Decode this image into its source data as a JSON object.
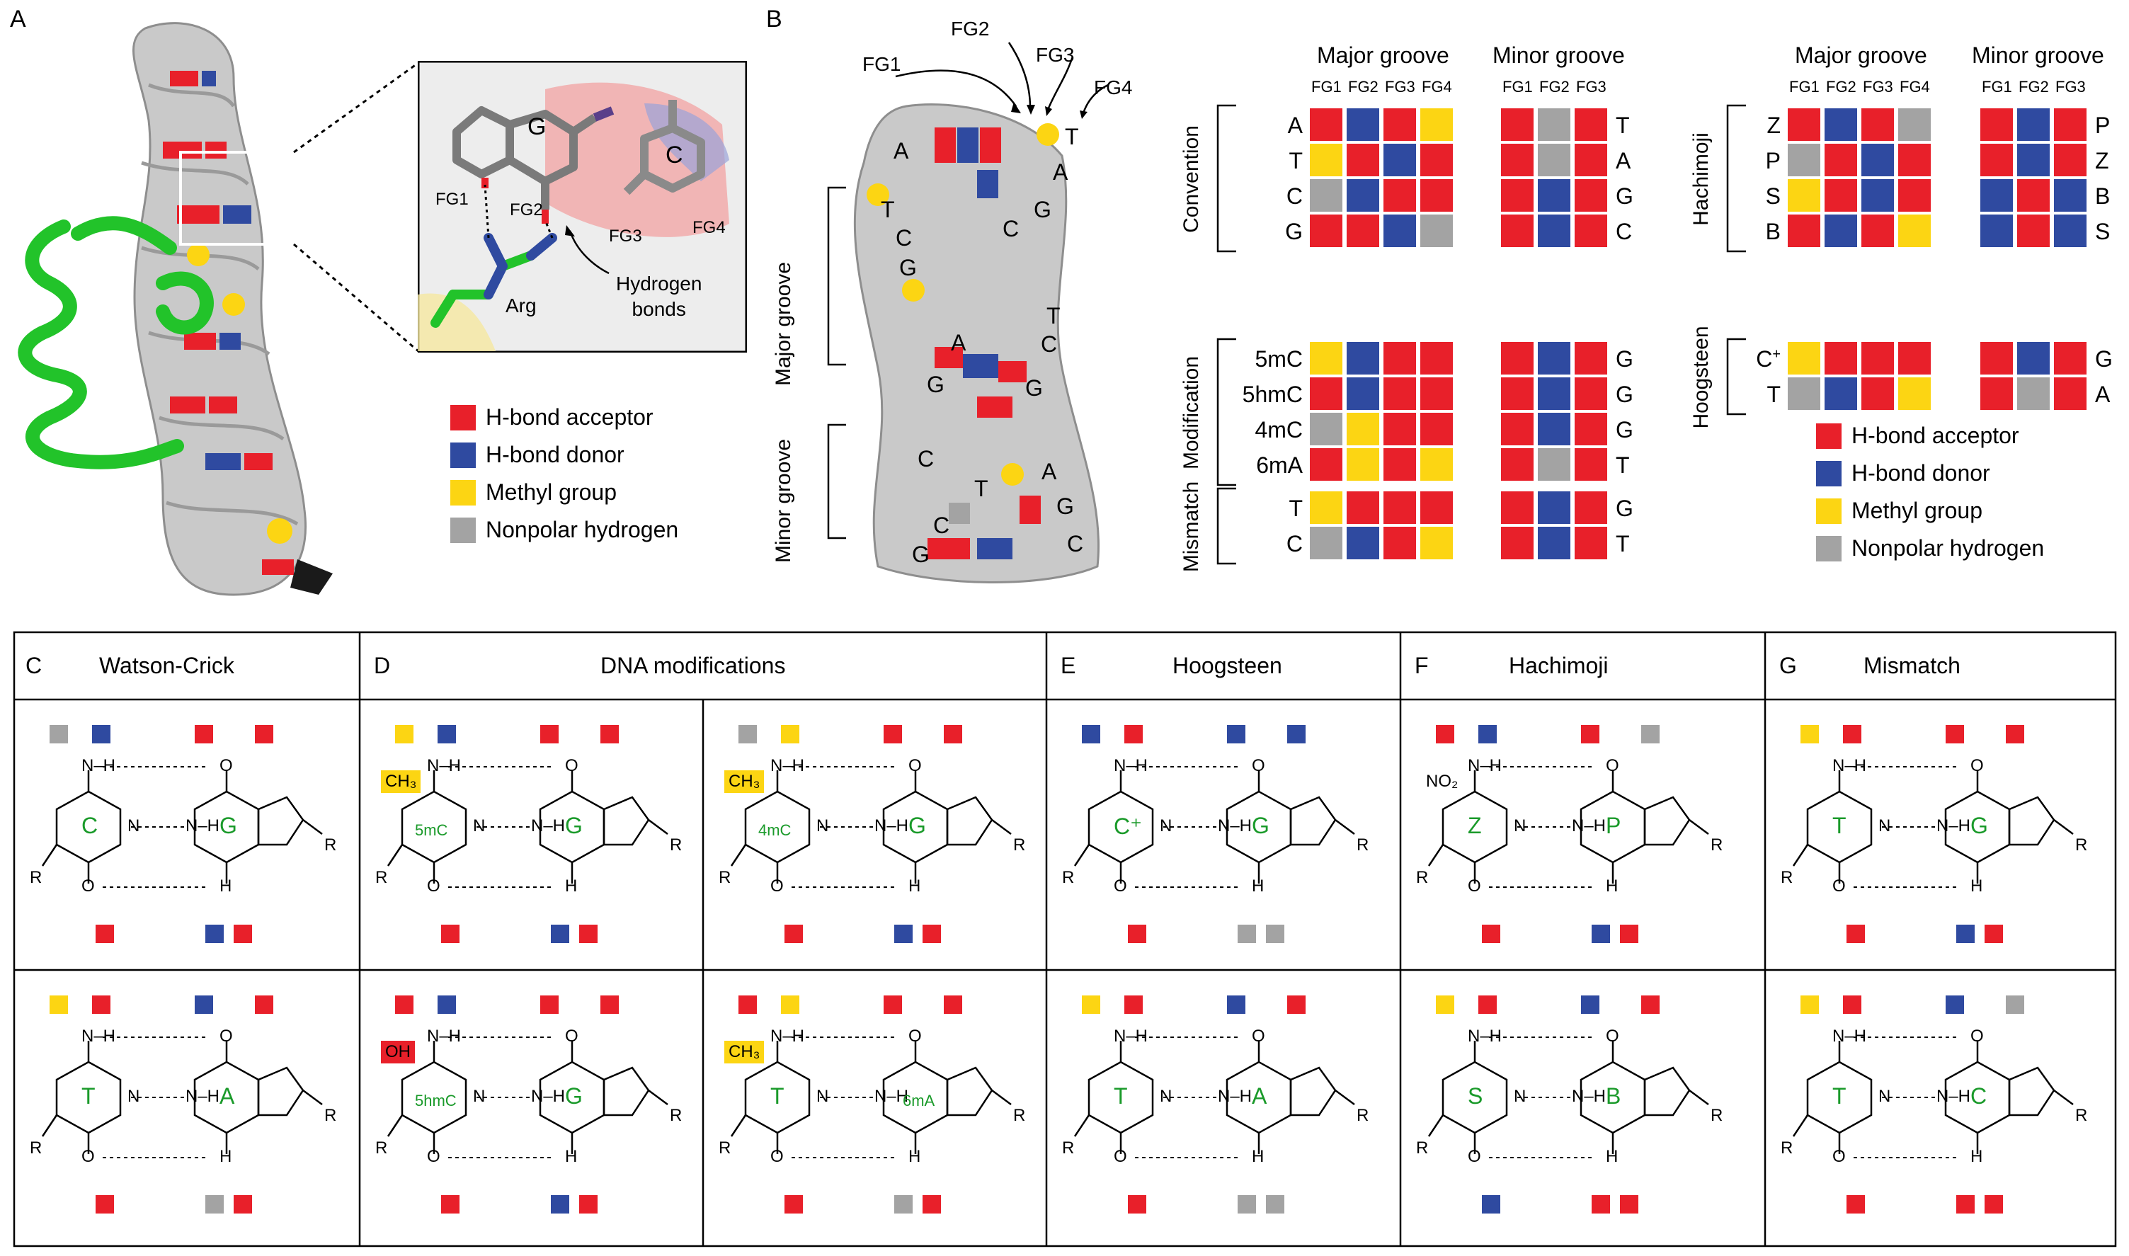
{
  "colors": {
    "acceptor": "#e8202a",
    "donor": "#2f4aa0",
    "methyl": "#fcd513",
    "nonpolar": "#a3a3a3",
    "base_label": "#1a9a2a",
    "protein": "#22c32a"
  },
  "panelA": {
    "label": "A",
    "fg_labels": [
      "FG1",
      "FG2",
      "FG3",
      "FG4"
    ],
    "base_g": "G",
    "base_c": "C",
    "arg": "Arg",
    "hbond": [
      "Hydrogen",
      "bonds"
    ],
    "legend": [
      {
        "key": "acceptor",
        "text": "H-bond acceptor"
      },
      {
        "key": "donor",
        "text": "H-bond donor"
      },
      {
        "key": "methyl",
        "text": "Methyl group"
      },
      {
        "key": "nonpolar",
        "text": "Nonpolar hydrogen"
      }
    ]
  },
  "panelB": {
    "label": "B",
    "fg_labels": [
      "FG1",
      "FG2",
      "FG3",
      "FG4"
    ],
    "groove_major": "Major groove",
    "groove_minor": "Minor groove",
    "dna_letters_left": [
      "A",
      "T",
      "C",
      "G",
      "A",
      "G",
      "C",
      "C",
      "G"
    ],
    "dna_letters_right": [
      "T",
      "A",
      "G",
      "C",
      "T",
      "C",
      "G",
      "T",
      "A",
      "G",
      "C"
    ],
    "table_headers": {
      "major": "Major groove",
      "minor": "Minor groove"
    },
    "major_cols": [
      "FG1",
      "FG2",
      "FG3",
      "FG4"
    ],
    "minor_cols": [
      "FG1",
      "FG2",
      "FG3"
    ],
    "left_groups": [
      {
        "name": "Convention",
        "rows": [
          {
            "label": "A",
            "major": [
              "acceptor",
              "donor",
              "acceptor",
              "methyl"
            ],
            "minor": [
              "acceptor",
              "nonpolar",
              "acceptor"
            ],
            "pair": "T"
          },
          {
            "label": "T",
            "major": [
              "methyl",
              "acceptor",
              "donor",
              "acceptor"
            ],
            "minor": [
              "acceptor",
              "nonpolar",
              "acceptor"
            ],
            "pair": "A"
          },
          {
            "label": "C",
            "major": [
              "nonpolar",
              "donor",
              "acceptor",
              "acceptor"
            ],
            "minor": [
              "acceptor",
              "donor",
              "acceptor"
            ],
            "pair": "G"
          },
          {
            "label": "G",
            "major": [
              "acceptor",
              "acceptor",
              "donor",
              "nonpolar"
            ],
            "minor": [
              "acceptor",
              "donor",
              "acceptor"
            ],
            "pair": "C"
          }
        ]
      },
      {
        "name": "Modification",
        "rows": [
          {
            "label": "5mC",
            "major": [
              "methyl",
              "donor",
              "acceptor",
              "acceptor"
            ],
            "minor": [
              "acceptor",
              "donor",
              "acceptor"
            ],
            "pair": "G"
          },
          {
            "label": "5hmC",
            "major": [
              "acceptor",
              "donor",
              "acceptor",
              "acceptor"
            ],
            "minor": [
              "acceptor",
              "donor",
              "acceptor"
            ],
            "pair": "G"
          },
          {
            "label": "4mC",
            "major": [
              "nonpolar",
              "methyl",
              "acceptor",
              "acceptor"
            ],
            "minor": [
              "acceptor",
              "donor",
              "acceptor"
            ],
            "pair": "G"
          },
          {
            "label": "6mA",
            "major": [
              "acceptor",
              "methyl",
              "acceptor",
              "methyl"
            ],
            "minor": [
              "acceptor",
              "nonpolar",
              "acceptor"
            ],
            "pair": "T"
          }
        ]
      },
      {
        "name": "Mismatch",
        "rows": [
          {
            "label": "T",
            "major": [
              "methyl",
              "acceptor",
              "acceptor",
              "acceptor"
            ],
            "minor": [
              "acceptor",
              "donor",
              "acceptor"
            ],
            "pair": "G"
          },
          {
            "label": "C",
            "major": [
              "nonpolar",
              "donor",
              "acceptor",
              "methyl"
            ],
            "minor": [
              "acceptor",
              "donor",
              "acceptor"
            ],
            "pair": "T"
          }
        ]
      }
    ],
    "right_groups": [
      {
        "name": "Hachimoji",
        "rows": [
          {
            "label": "Z",
            "major": [
              "acceptor",
              "donor",
              "acceptor",
              "nonpolar"
            ],
            "minor": [
              "acceptor",
              "donor",
              "acceptor"
            ],
            "pair": "P"
          },
          {
            "label": "P",
            "major": [
              "nonpolar",
              "acceptor",
              "donor",
              "acceptor"
            ],
            "minor": [
              "acceptor",
              "donor",
              "acceptor"
            ],
            "pair": "Z"
          },
          {
            "label": "S",
            "major": [
              "methyl",
              "acceptor",
              "donor",
              "acceptor"
            ],
            "minor": [
              "donor",
              "acceptor",
              "donor"
            ],
            "pair": "B"
          },
          {
            "label": "B",
            "major": [
              "acceptor",
              "donor",
              "acceptor",
              "methyl"
            ],
            "minor": [
              "donor",
              "acceptor",
              "donor"
            ],
            "pair": "S"
          }
        ]
      },
      {
        "name": "Hoogsteen",
        "rows": [
          {
            "label": "C",
            "label_sup": "+",
            "major": [
              "methyl",
              "acceptor",
              "acceptor",
              "acceptor"
            ],
            "minor": [
              "acceptor",
              "donor",
              "acceptor"
            ],
            "pair": "G"
          },
          {
            "label": "T",
            "major": [
              "nonpolar",
              "donor",
              "acceptor",
              "methyl"
            ],
            "minor": [
              "acceptor",
              "nonpolar",
              "acceptor"
            ],
            "pair": "A"
          }
        ]
      }
    ],
    "legend": [
      {
        "key": "acceptor",
        "text": "H-bond acceptor"
      },
      {
        "key": "donor",
        "text": "H-bond donor"
      },
      {
        "key": "methyl",
        "text": "Methyl group"
      },
      {
        "key": "nonpolar",
        "text": "Nonpolar hydrogen"
      }
    ]
  },
  "bottom": {
    "headers": [
      {
        "letter": "C",
        "title": "Watson-Crick"
      },
      {
        "letter": "D",
        "title": "DNA modifications"
      },
      {
        "letter": "E",
        "title": "Hoogsteen"
      },
      {
        "letter": "F",
        "title": "Hachimoji"
      },
      {
        "letter": "G",
        "title": "Mismatch"
      }
    ],
    "cells": [
      {
        "left": "C",
        "right": "G",
        "top": [
          "nonpolar",
          "donor",
          "acceptor",
          "acceptor"
        ],
        "bottom": [
          "acceptor",
          "donor",
          "acceptor"
        ]
      },
      {
        "left": "T",
        "right": "A",
        "top": [
          "methyl",
          "acceptor",
          "donor",
          "acceptor"
        ],
        "bottom": [
          "acceptor",
          "nonpolar",
          "acceptor"
        ]
      },
      {
        "left": "5mC",
        "right": "G",
        "tag": "CH₃",
        "tag_color": "methyl",
        "top": [
          "methyl",
          "donor",
          "acceptor",
          "acceptor"
        ],
        "bottom": [
          "acceptor",
          "donor",
          "acceptor"
        ]
      },
      {
        "left": "5hmC",
        "right": "G",
        "tag": "OH",
        "tag_color": "acceptor",
        "top": [
          "acceptor",
          "donor",
          "acceptor",
          "acceptor"
        ],
        "bottom": [
          "acceptor",
          "donor",
          "acceptor"
        ]
      },
      {
        "left": "4mC",
        "right": "G",
        "tag": "CH₃",
        "tag_color": "methyl",
        "top": [
          "nonpolar",
          "methyl",
          "acceptor",
          "acceptor"
        ],
        "bottom": [
          "acceptor",
          "donor",
          "acceptor"
        ]
      },
      {
        "left": "T",
        "right": "6mA",
        "tag": "CH₃",
        "tag_color": "methyl",
        "top": [
          "acceptor",
          "methyl",
          "acceptor",
          "acceptor"
        ],
        "bottom": [
          "acceptor",
          "nonpolar",
          "acceptor"
        ]
      },
      {
        "left": "C⁺",
        "right": "G",
        "top": [
          "donor",
          "acceptor",
          "donor",
          "donor"
        ],
        "bottom": [
          "acceptor",
          "nonpolar",
          "nonpolar"
        ]
      },
      {
        "left": "T",
        "right": "A",
        "top": [
          "methyl",
          "acceptor",
          "donor",
          "acceptor"
        ],
        "bottom": [
          "acceptor",
          "nonpolar",
          "nonpolar"
        ]
      },
      {
        "left": "Z",
        "right": "P",
        "tag": "NO₂",
        "top": [
          "acceptor",
          "donor",
          "acceptor",
          "nonpolar"
        ],
        "bottom": [
          "acceptor",
          "donor",
          "acceptor"
        ]
      },
      {
        "left": "S",
        "right": "B",
        "top": [
          "methyl",
          "acceptor",
          "donor",
          "acceptor"
        ],
        "bottom": [
          "donor",
          "acceptor",
          "acceptor"
        ]
      },
      {
        "left": "T",
        "right": "G",
        "top": [
          "methyl",
          "acceptor",
          "acceptor",
          "acceptor"
        ],
        "bottom": [
          "acceptor",
          "donor",
          "acceptor"
        ]
      },
      {
        "left": "T",
        "right": "C",
        "top": [
          "methyl",
          "acceptor",
          "donor",
          "nonpolar"
        ],
        "bottom": [
          "acceptor",
          "acceptor",
          "acceptor"
        ]
      }
    ],
    "chem": {
      "nh": "N–H",
      "o": "O",
      "n": "N",
      "r": "R",
      "h": "H",
      "ch3": "CH₃"
    }
  }
}
